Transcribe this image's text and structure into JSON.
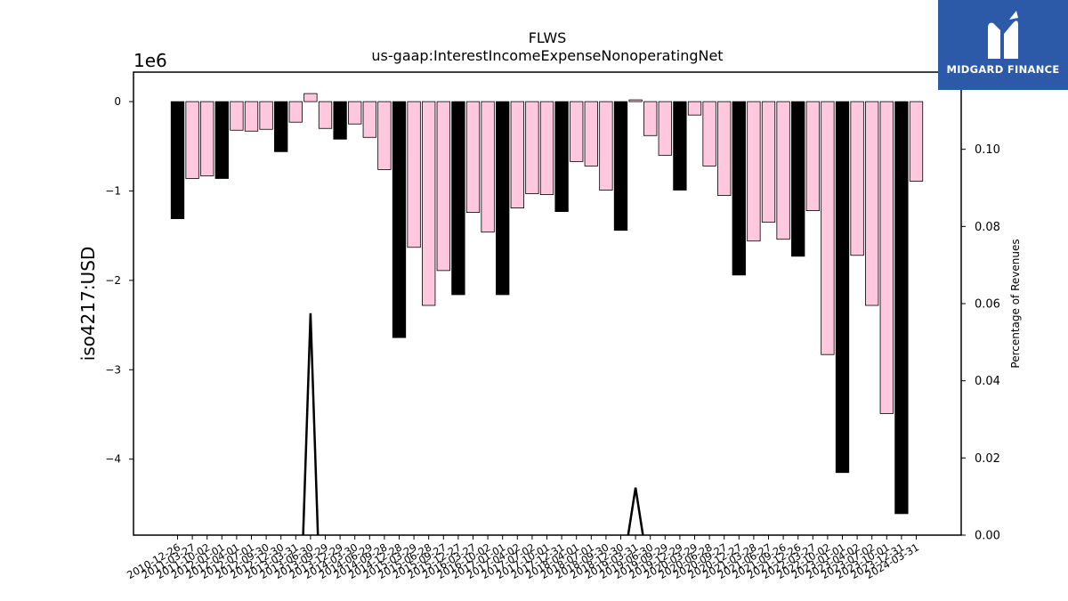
{
  "chart_data": {
    "type": "bar",
    "title": "FLWS",
    "subtitle": "us-gaap:InterestIncomeExpenseNonoperatingNet",
    "ylabel": "iso4217:USD",
    "y_offset_label": "1e6",
    "y2label": "Percentage of Revenues",
    "ylim": [
      -4.85,
      0.33
    ],
    "y2lim": [
      0.0,
      0.12
    ],
    "y_ticks": [
      "0",
      "−1",
      "−2",
      "−3",
      "−4"
    ],
    "y2_ticks": [
      "0.00",
      "0.02",
      "0.04",
      "0.06",
      "0.08",
      "0.10",
      "0.12"
    ],
    "grid": false,
    "colors": {
      "annual": "#000000",
      "quarter": "#ffc8dc",
      "edge": "#000000",
      "line": "#000000"
    },
    "categories": [
      "2010-12-26",
      "2011-03-27",
      "2011-10-02",
      "2012-01-01",
      "2012-04-01",
      "2012-07-01",
      "2012-09-30",
      "2012-12-30",
      "2013-03-31",
      "2013-06-30",
      "2013-09-29",
      "2013-12-29",
      "2014-03-30",
      "2014-06-29",
      "2014-09-28",
      "2014-12-28",
      "2015-03-29",
      "2015-06-28",
      "2015-09-27",
      "2015-12-27",
      "2016-03-27",
      "2016-10-02",
      "2017-01-01",
      "2017-04-02",
      "2017-07-02",
      "2017-10-01",
      "2017-12-31",
      "2018-04-01",
      "2018-07-01",
      "2018-09-30",
      "2018-12-30",
      "2019-03-31",
      "2019-06-30",
      "2019-09-29",
      "2019-12-29",
      "2020-03-29",
      "2020-06-28",
      "2020-09-27",
      "2020-12-27",
      "2021-03-28",
      "2021-06-27",
      "2021-09-26",
      "2021-12-26",
      "2022-03-27",
      "2022-10-02",
      "2023-01-01",
      "2023-04-02",
      "2023-07-02",
      "2023-10-01",
      "2023-12-31",
      "2024-03-31"
    ],
    "values": [
      -1.31,
      -0.86,
      -0.83,
      -0.86,
      -0.32,
      -0.33,
      -0.31,
      -0.56,
      -0.23,
      0.09,
      -0.3,
      -0.42,
      -0.25,
      -0.4,
      -0.76,
      -2.64,
      -1.63,
      -2.28,
      -1.89,
      -2.16,
      -1.24,
      -1.46,
      -2.16,
      -1.19,
      -1.03,
      -1.04,
      -1.23,
      -0.67,
      -0.72,
      -0.99,
      -1.44,
      0.02,
      -0.38,
      -0.6,
      -0.99,
      -0.15,
      -0.72,
      -1.05,
      -1.94,
      -1.56,
      -1.35,
      -1.54,
      -1.73,
      -1.22,
      -2.83,
      -4.15,
      -1.72,
      -2.28,
      -3.49,
      -4.61,
      -0.89
    ],
    "annual_flags": [
      1,
      0,
      0,
      1,
      0,
      0,
      0,
      1,
      0,
      0,
      0,
      1,
      0,
      0,
      0,
      1,
      0,
      0,
      0,
      1,
      0,
      0,
      1,
      0,
      0,
      0,
      1,
      0,
      0,
      0,
      1,
      0,
      0,
      0,
      1,
      0,
      0,
      0,
      1,
      0,
      0,
      0,
      1,
      0,
      0,
      1,
      0,
      0,
      0,
      1,
      0
    ],
    "pct_line": {
      "peaks": [
        {
          "index": 9,
          "value": 0.0575
        },
        {
          "index": 31,
          "value": 0.0123
        }
      ],
      "baseline": 0.0
    }
  },
  "logo": {
    "text": "MIDGARD FINANCE",
    "color": "#2c5aa8"
  }
}
